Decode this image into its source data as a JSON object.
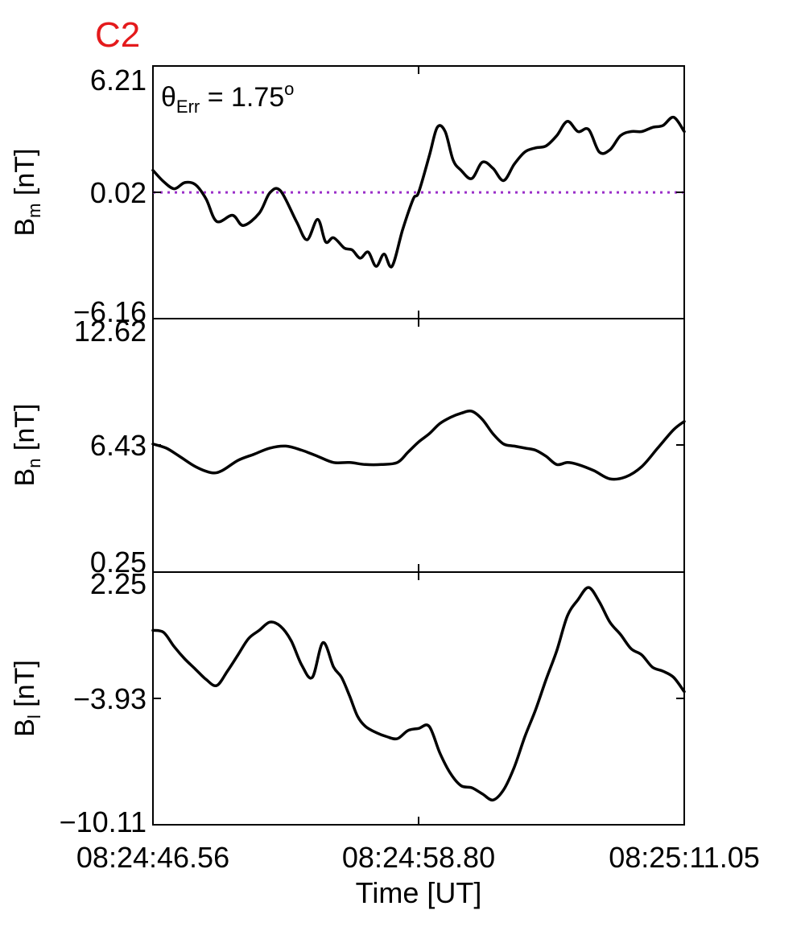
{
  "title": "C2",
  "annotation": {
    "symbol": "θ",
    "subscript": "Err",
    "text": " =  1.75",
    "superscript": "o"
  },
  "colors": {
    "title": "#e41a1c",
    "reference_line": "#9b2fc9",
    "trace": "#000000"
  },
  "chart_data": {
    "type": "line",
    "x_ticks": [
      "08:24:46.56",
      "08:24:58.80",
      "08:25:11.05"
    ],
    "x_range": [
      "08:24:46.56",
      "08:25:11.05"
    ],
    "xlabel": "Time [UT]",
    "panels": [
      {
        "label_main": "B",
        "label_sub": "m",
        "label_unit": " [nT]",
        "ylim": [
          -6.16,
          6.21
        ],
        "y_ticks": [
          "6.21",
          "0.02",
          "−6.16"
        ],
        "y_tick_values": [
          6.21,
          0.02,
          -6.16
        ],
        "reference_line": 0.02,
        "series": {
          "x": [
            0,
            0.02,
            0.04,
            0.06,
            0.08,
            0.1,
            0.12,
            0.15,
            0.17,
            0.2,
            0.22,
            0.24,
            0.27,
            0.29,
            0.31,
            0.325,
            0.34,
            0.36,
            0.375,
            0.39,
            0.405,
            0.42,
            0.435,
            0.45,
            0.47,
            0.49,
            0.5,
            0.52,
            0.535,
            0.55,
            0.565,
            0.58,
            0.6,
            0.62,
            0.64,
            0.66,
            0.68,
            0.7,
            0.72,
            0.74,
            0.76,
            0.78,
            0.8,
            0.82,
            0.84,
            0.86,
            0.88,
            0.9,
            0.92,
            0.94,
            0.96,
            0.98,
            1.0
          ],
          "y": [
            1.1,
            0.55,
            0.2,
            0.5,
            0.4,
            -0.3,
            -1.4,
            -1.1,
            -1.6,
            -1.0,
            0.0,
            0.1,
            -1.4,
            -2.3,
            -1.3,
            -2.4,
            -2.2,
            -2.7,
            -2.8,
            -3.2,
            -2.9,
            -3.6,
            -3.0,
            -3.6,
            -1.8,
            -0.3,
            0.02,
            1.8,
            3.2,
            3.0,
            1.6,
            1.1,
            0.7,
            1.5,
            1.2,
            0.6,
            1.4,
            2.0,
            2.2,
            2.3,
            2.8,
            3.5,
            3.0,
            3.1,
            2.0,
            2.1,
            2.8,
            3.0,
            3.0,
            3.2,
            3.3,
            3.7,
            3.0
          ]
        }
      },
      {
        "label_main": "B",
        "label_sub": "n",
        "label_unit": " [nT]",
        "ylim": [
          0.25,
          12.62
        ],
        "y_ticks": [
          "12.62",
          "6.43",
          "0.25"
        ],
        "y_tick_values": [
          12.62,
          6.43,
          0.25
        ],
        "series": {
          "x": [
            0,
            0.025,
            0.05,
            0.08,
            0.11,
            0.13,
            0.16,
            0.19,
            0.22,
            0.25,
            0.28,
            0.31,
            0.34,
            0.37,
            0.4,
            0.43,
            0.46,
            0.48,
            0.5,
            0.52,
            0.54,
            0.56,
            0.58,
            0.6,
            0.62,
            0.64,
            0.66,
            0.68,
            0.7,
            0.72,
            0.74,
            0.76,
            0.78,
            0.8,
            0.83,
            0.86,
            0.89,
            0.92,
            0.95,
            0.98,
            1.0
          ],
          "y": [
            6.5,
            6.3,
            5.9,
            5.4,
            5.1,
            5.2,
            5.7,
            6.0,
            6.3,
            6.4,
            6.2,
            5.9,
            5.6,
            5.6,
            5.5,
            5.5,
            5.6,
            6.1,
            6.6,
            7.0,
            7.5,
            7.8,
            8.0,
            8.1,
            7.7,
            7.0,
            6.5,
            6.4,
            6.3,
            6.2,
            5.9,
            5.5,
            5.6,
            5.5,
            5.2,
            4.8,
            4.9,
            5.4,
            6.3,
            7.2,
            7.6
          ]
        }
      },
      {
        "label_main": "B",
        "label_sub": "l",
        "label_unit": " [nT]",
        "ylim": [
          -10.11,
          2.25
        ],
        "y_ticks": [
          "2.25",
          "−3.93",
          "−10.11"
        ],
        "y_tick_values": [
          2.25,
          -3.93,
          -10.11
        ],
        "series": {
          "x": [
            0,
            0.02,
            0.04,
            0.06,
            0.08,
            0.1,
            0.12,
            0.14,
            0.16,
            0.18,
            0.2,
            0.22,
            0.24,
            0.26,
            0.28,
            0.3,
            0.32,
            0.34,
            0.355,
            0.37,
            0.385,
            0.4,
            0.42,
            0.44,
            0.46,
            0.48,
            0.5,
            0.52,
            0.54,
            0.56,
            0.58,
            0.6,
            0.62,
            0.64,
            0.66,
            0.68,
            0.7,
            0.72,
            0.74,
            0.76,
            0.78,
            0.8,
            0.82,
            0.84,
            0.86,
            0.88,
            0.9,
            0.92,
            0.94,
            0.96,
            0.98,
            1.0
          ],
          "y": [
            -0.6,
            -0.7,
            -1.4,
            -2.0,
            -2.5,
            -3.0,
            -3.3,
            -2.6,
            -1.8,
            -1.0,
            -0.6,
            -0.2,
            -0.4,
            -1.1,
            -2.3,
            -2.9,
            -1.2,
            -2.4,
            -2.9,
            -3.8,
            -4.8,
            -5.3,
            -5.6,
            -5.8,
            -5.9,
            -5.5,
            -5.4,
            -5.3,
            -6.6,
            -7.6,
            -8.2,
            -8.3,
            -8.6,
            -8.9,
            -8.4,
            -7.3,
            -5.8,
            -4.5,
            -3.0,
            -1.6,
            0.1,
            0.9,
            1.5,
            0.8,
            -0.2,
            -0.8,
            -1.5,
            -1.8,
            -2.4,
            -2.6,
            -2.9,
            -3.6
          ]
        }
      }
    ]
  }
}
